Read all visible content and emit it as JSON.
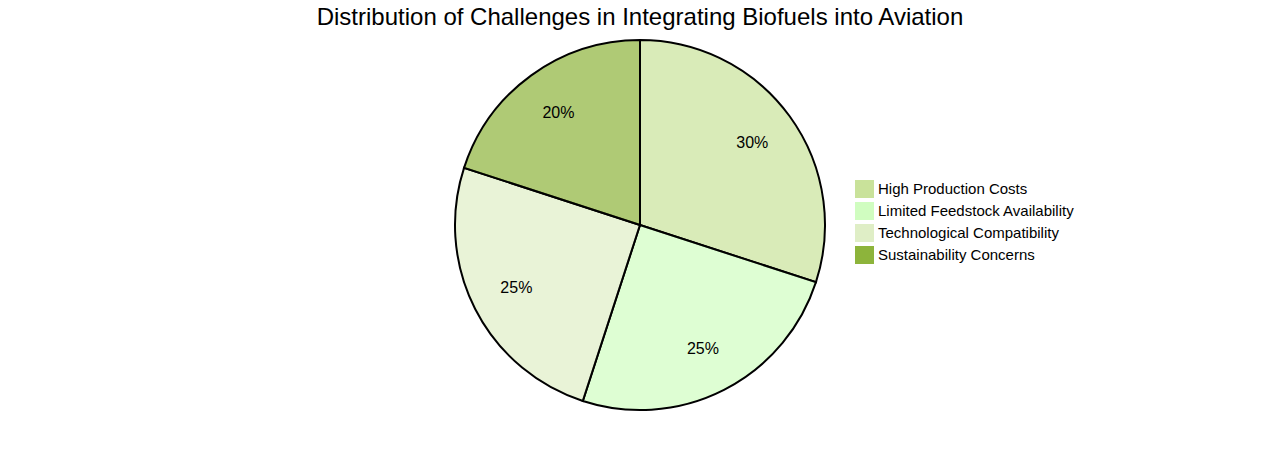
{
  "chart_data": {
    "type": "pie",
    "title": "Distribution of Challenges in Integrating Biofuels into Aviation",
    "categories": [
      "High Production Costs",
      "Limited Feedstock Availability",
      "Technological Compatibility",
      "Sustainability Concerns"
    ],
    "values": [
      30,
      25,
      25,
      20
    ],
    "value_labels": [
      "30%",
      "25%",
      "25%",
      "20%"
    ],
    "colors": [
      "#c9e29a",
      "#d0fdc0",
      "#dfeec6",
      "#8db43b"
    ],
    "data_labels": true,
    "legend": "right"
  }
}
